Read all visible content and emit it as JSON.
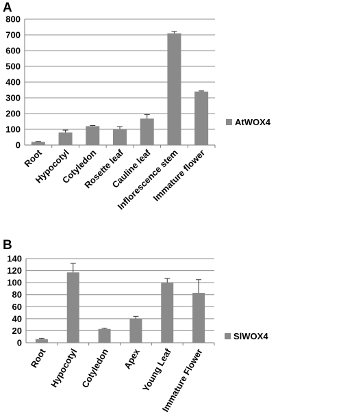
{
  "chart_data": [
    {
      "type": "bar",
      "panel_label": "A",
      "title": "",
      "xlabel": "",
      "ylabel": "",
      "ylim": [
        0,
        800
      ],
      "yticks": [
        0,
        100,
        200,
        300,
        400,
        500,
        600,
        700,
        800
      ],
      "grid": true,
      "legend_position": "right",
      "categories": [
        "Root",
        "Hypocotyl",
        "Cotyledon",
        "Rosette leaf",
        "Cauline leaf",
        "Inflorescence stem",
        "Immature flower"
      ],
      "series": [
        {
          "name": "AtWOX4",
          "color": "#8a8a8a",
          "values": [
            20,
            80,
            120,
            102,
            168,
            710,
            340
          ],
          "errors": [
            3,
            15,
            4,
            15,
            25,
            12,
            4
          ]
        }
      ]
    },
    {
      "type": "bar",
      "panel_label": "B",
      "title": "",
      "xlabel": "",
      "ylabel": "",
      "ylim": [
        0,
        140
      ],
      "yticks": [
        0,
        20,
        40,
        60,
        80,
        100,
        120,
        140
      ],
      "grid": true,
      "legend_position": "right",
      "categories": [
        "Root",
        "Hypocotyl",
        "Cotyledon",
        "Apex",
        "Young Leaf",
        "Immature Flower"
      ],
      "series": [
        {
          "name": "SlWOX4",
          "color": "#8a8a8a",
          "values": [
            6,
            117,
            23,
            40,
            100,
            83
          ],
          "errors": [
            1.5,
            15,
            1,
            4,
            7,
            22
          ]
        }
      ]
    }
  ]
}
